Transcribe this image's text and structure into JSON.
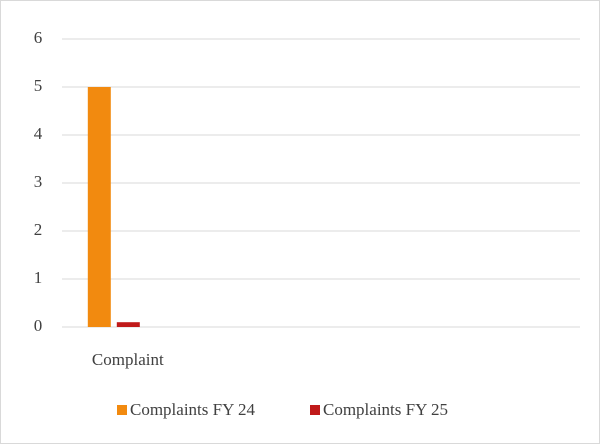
{
  "chart_data": {
    "type": "bar",
    "categories": [
      "Complaint",
      null,
      null,
      null,
      null
    ],
    "series": [
      {
        "name": "Complaints FY 24",
        "color": "#f28a0f",
        "values": [
          5,
          null,
          null,
          null,
          null
        ]
      },
      {
        "name": "Complaints FY 25",
        "color": "#c01a1a",
        "values": [
          0.1,
          null,
          null,
          null,
          null
        ]
      }
    ],
    "ylim": [
      0,
      6
    ],
    "yticks": [
      0,
      1,
      2,
      3,
      4,
      5,
      6
    ],
    "grid": true,
    "legend": "bottom"
  }
}
